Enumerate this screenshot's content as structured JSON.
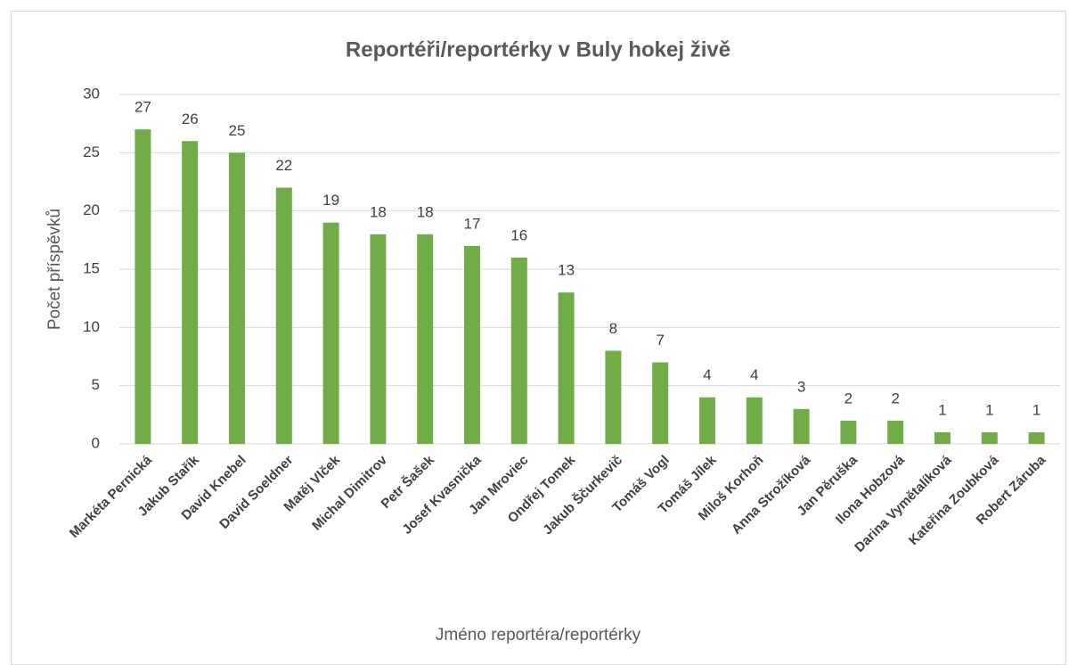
{
  "chart_data": {
    "type": "bar",
    "title": "Reportéři/reportérky v Buly hokej živě",
    "x_label": "Jméno reportéra/reportérky",
    "y_label": "Počet příspěvků",
    "categories": [
      "Markéta Pernická",
      "Jakub Stařík",
      "David Knebel",
      "David Soeldner",
      "Matěj Vlček",
      "Michal Dimitrov",
      "Petr Šašek",
      "Josef Kvasnička",
      "Jan Mroviec",
      "Ondřej Tomek",
      "Jakub Ščurkevič",
      "Tomáš Vogl",
      "Tomáš Jílek",
      "Miloš Korhoň",
      "Anna Strožíková",
      "Jan Pěruška",
      "Ilona Hobzová",
      "Darina Vymětalíková",
      "Kateřina Zoubková",
      "Robert Záruba"
    ],
    "values": [
      27,
      26,
      25,
      22,
      19,
      18,
      18,
      17,
      16,
      13,
      8,
      7,
      4,
      4,
      3,
      2,
      2,
      1,
      1,
      1
    ],
    "color": "#70ad47",
    "ylim": [
      0,
      30
    ],
    "yticks": [
      0,
      5,
      10,
      15,
      20,
      25,
      30
    ],
    "grid": true
  }
}
